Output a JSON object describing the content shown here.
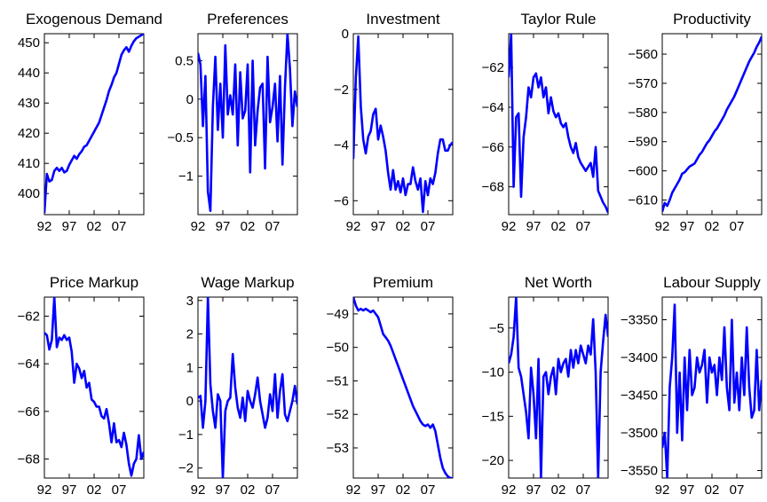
{
  "line_color": "#0000ff",
  "x_ticks": [
    "92",
    "97",
    "02",
    "07"
  ],
  "chart_data": [
    {
      "type": "line",
      "title": "Exogenous Demand",
      "xlim": [
        1992,
        2012
      ],
      "ylim": [
        393,
        453
      ],
      "yticks": [
        {
          "v": 400,
          "label": "400"
        },
        {
          "v": 410,
          "label": "410"
        },
        {
          "v": 420,
          "label": "420"
        },
        {
          "v": 430,
          "label": "430"
        },
        {
          "v": 440,
          "label": "440"
        },
        {
          "v": 450,
          "label": "450"
        }
      ],
      "x": [
        1992,
        1992.5,
        1993,
        1993.5,
        1994,
        1994.5,
        1995,
        1995.5,
        1996,
        1996.5,
        1997,
        1997.5,
        1998,
        1998.5,
        1999,
        1999.5,
        2000,
        2000.5,
        2001,
        2001.5,
        2002,
        2002.5,
        2003,
        2003.5,
        2004,
        2004.5,
        2005,
        2005.5,
        2006,
        2006.5,
        2007,
        2007.5,
        2008,
        2008.5,
        2009,
        2009.5,
        2010,
        2010.5,
        2011,
        2011.5,
        2012
      ],
      "values": [
        393.5,
        406.5,
        404,
        404.5,
        407.5,
        408.5,
        407.5,
        408.5,
        407,
        407.5,
        409.5,
        411,
        412.5,
        411.5,
        413,
        414,
        415.5,
        416,
        417.5,
        419,
        420.5,
        422,
        423.5,
        426,
        428.5,
        431,
        434,
        436,
        438.5,
        440,
        443,
        446,
        447.5,
        448.5,
        447,
        449,
        450.5,
        451.5,
        452,
        452.5,
        453
      ]
    },
    {
      "type": "line",
      "title": "Preferences",
      "xlim": [
        1992,
        2012
      ],
      "ylim": [
        -1.5,
        0.85
      ],
      "yticks": [
        {
          "v": -1,
          "label": "−1"
        },
        {
          "v": -0.5,
          "label": "−0.5"
        },
        {
          "v": 0,
          "label": "0"
        },
        {
          "v": 0.5,
          "label": "0.5"
        }
      ],
      "x": [
        1992,
        1992.5,
        1993,
        1993.5,
        1994,
        1994.5,
        1995,
        1995.5,
        1996,
        1996.5,
        1997,
        1997.5,
        1998,
        1998.5,
        1999,
        1999.5,
        2000,
        2000.5,
        2001,
        2001.5,
        2002,
        2002.5,
        2003,
        2003.5,
        2004,
        2004.5,
        2005,
        2005.5,
        2006,
        2006.5,
        2007,
        2007.5,
        2008,
        2008.5,
        2009,
        2009.5,
        2010,
        2010.5,
        2011,
        2011.5,
        2012
      ],
      "values": [
        0.6,
        0.45,
        -0.35,
        0.3,
        -1.2,
        -1.45,
        -0.1,
        0.55,
        -0.4,
        0.2,
        -0.5,
        0.7,
        -0.2,
        0.05,
        -0.2,
        0.45,
        -0.6,
        0.35,
        -0.25,
        -0.15,
        0.45,
        -0.95,
        0.5,
        -0.6,
        -0.15,
        0.15,
        0.2,
        -0.9,
        0.55,
        -0.3,
        -0.1,
        0.2,
        -0.55,
        0.3,
        -0.85,
        0.15,
        0.85,
        0.4,
        -0.35,
        0.1,
        -0.1
      ]
    },
    {
      "type": "line",
      "title": "Investment",
      "xlim": [
        1992,
        2012
      ],
      "ylim": [
        -6.5,
        0
      ],
      "yticks": [
        {
          "v": -6,
          "label": "−6"
        },
        {
          "v": -4,
          "label": "−4"
        },
        {
          "v": -2,
          "label": "−2"
        },
        {
          "v": 0,
          "label": "0"
        }
      ],
      "x": [
        1992,
        1992.5,
        1993,
        1993.5,
        1994,
        1994.5,
        1995,
        1995.5,
        1996,
        1996.5,
        1997,
        1997.5,
        1998,
        1998.5,
        1999,
        1999.5,
        2000,
        2000.5,
        2001,
        2001.5,
        2002,
        2002.5,
        2003,
        2003.5,
        2004,
        2004.5,
        2005,
        2005.5,
        2006,
        2006.5,
        2007,
        2007.5,
        2008,
        2008.5,
        2009,
        2009.5,
        2010,
        2010.5,
        2011,
        2011.5,
        2012
      ],
      "values": [
        -4.5,
        -1.6,
        -0.1,
        -2.6,
        -3.8,
        -4.3,
        -3.7,
        -3.5,
        -2.9,
        -2.7,
        -3.8,
        -3.3,
        -3.7,
        -4.2,
        -5.0,
        -5.6,
        -4.9,
        -5.6,
        -5.3,
        -5.7,
        -5.2,
        -5.8,
        -5.4,
        -5.4,
        -4.8,
        -5.3,
        -5.6,
        -5.2,
        -6.4,
        -5.3,
        -5.8,
        -5.2,
        -5.4,
        -5.0,
        -4.3,
        -3.8,
        -3.8,
        -4.2,
        -4.2,
        -4.0,
        -3.9
      ]
    },
    {
      "type": "line",
      "title": "Taylor Rule",
      "xlim": [
        1992,
        2012
      ],
      "ylim": [
        -69.4,
        -60.3
      ],
      "yticks": [
        {
          "v": -68,
          "label": "−68"
        },
        {
          "v": -66,
          "label": "−66"
        },
        {
          "v": -64,
          "label": "−64"
        },
        {
          "v": -62,
          "label": "−62"
        }
      ],
      "x": [
        1992,
        1992.5,
        1993,
        1993.5,
        1994,
        1994.5,
        1995,
        1995.5,
        1996,
        1996.5,
        1997,
        1997.5,
        1998,
        1998.5,
        1999,
        1999.5,
        2000,
        2000.5,
        2001,
        2001.5,
        2002,
        2002.5,
        2003,
        2003.5,
        2004,
        2004.5,
        2005,
        2005.5,
        2006,
        2006.5,
        2007,
        2007.5,
        2008,
        2008.5,
        2009,
        2009.5,
        2010,
        2010.5,
        2011,
        2011.5,
        2012
      ],
      "values": [
        -62.5,
        -60.3,
        -68.0,
        -64.5,
        -64.3,
        -68.5,
        -65.5,
        -64.5,
        -63.0,
        -63.5,
        -62.5,
        -62.3,
        -63.0,
        -62.5,
        -63.5,
        -63.0,
        -64.3,
        -63.5,
        -64.2,
        -64.5,
        -64.3,
        -64.8,
        -65.0,
        -64.8,
        -65.5,
        -66.0,
        -66.3,
        -65.8,
        -66.5,
        -66.8,
        -67.0,
        -67.2,
        -67.0,
        -66.8,
        -67.5,
        -66.0,
        -68.2,
        -68.5,
        -68.8,
        -69.0,
        -69.3
      ]
    },
    {
      "type": "line",
      "title": "Productivity",
      "xlim": [
        1992,
        2012
      ],
      "ylim": [
        -615,
        -553
      ],
      "yticks": [
        {
          "v": -610,
          "label": "−610"
        },
        {
          "v": -600,
          "label": "−600"
        },
        {
          "v": -590,
          "label": "−590"
        },
        {
          "v": -580,
          "label": "−580"
        },
        {
          "v": -570,
          "label": "−570"
        },
        {
          "v": -560,
          "label": "−560"
        }
      ],
      "x": [
        1992,
        1992.5,
        1993,
        1993.5,
        1994,
        1994.5,
        1995,
        1995.5,
        1996,
        1996.5,
        1997,
        1997.5,
        1998,
        1998.5,
        1999,
        1999.5,
        2000,
        2000.5,
        2001,
        2001.5,
        2002,
        2002.5,
        2003,
        2003.5,
        2004,
        2004.5,
        2005,
        2005.5,
        2006,
        2006.5,
        2007,
        2007.5,
        2008,
        2008.5,
        2009,
        2009.5,
        2010,
        2010.5,
        2011,
        2011.5,
        2012
      ],
      "values": [
        -614,
        -611,
        -612,
        -610,
        -607.5,
        -606,
        -604.5,
        -603,
        -601,
        -600.5,
        -599.5,
        -598.5,
        -598,
        -597.5,
        -596,
        -594.5,
        -593.5,
        -592,
        -590.5,
        -589.5,
        -588,
        -586.5,
        -585.5,
        -584,
        -582.5,
        -581,
        -579,
        -577.5,
        -576,
        -574.5,
        -572.5,
        -570.5,
        -568.5,
        -566.5,
        -564.5,
        -562.5,
        -561,
        -559.5,
        -557.5,
        -556,
        -554
      ]
    },
    {
      "type": "line",
      "title": "Price Markup",
      "xlim": [
        1992,
        2012
      ],
      "ylim": [
        -68.8,
        -61.2
      ],
      "yticks": [
        {
          "v": -68,
          "label": "−68"
        },
        {
          "v": -66,
          "label": "−66"
        },
        {
          "v": -64,
          "label": "−64"
        },
        {
          "v": -62,
          "label": "−62"
        }
      ],
      "x": [
        1992,
        1992.5,
        1993,
        1993.5,
        1994,
        1994.5,
        1995,
        1995.5,
        1996,
        1996.5,
        1997,
        1997.5,
        1998,
        1998.5,
        1999,
        1999.5,
        2000,
        2000.5,
        2001,
        2001.5,
        2002,
        2002.5,
        2003,
        2003.5,
        2004,
        2004.5,
        2005,
        2005.5,
        2006,
        2006.5,
        2007,
        2007.5,
        2008,
        2008.5,
        2009,
        2009.5,
        2010,
        2010.5,
        2011,
        2011.5,
        2012
      ],
      "values": [
        -62.7,
        -62.8,
        -63.4,
        -63.0,
        -61.2,
        -63.3,
        -62.9,
        -63.0,
        -62.8,
        -63.0,
        -62.9,
        -63.5,
        -64.8,
        -64.0,
        -64.2,
        -64.6,
        -64.3,
        -65.0,
        -64.8,
        -65.5,
        -65.6,
        -65.8,
        -65.8,
        -66.2,
        -66.3,
        -65.9,
        -66.5,
        -67.3,
        -66.5,
        -67.3,
        -67.2,
        -67.5,
        -66.9,
        -67.4,
        -68.2,
        -68.7,
        -68.2,
        -68.0,
        -67.0,
        -68.0,
        -67.7
      ]
    },
    {
      "type": "line",
      "title": "Wage Markup",
      "xlim": [
        1992,
        2012
      ],
      "ylim": [
        -2.3,
        3.1
      ],
      "yticks": [
        {
          "v": -2,
          "label": "−2"
        },
        {
          "v": -1,
          "label": "−1"
        },
        {
          "v": 0,
          "label": "0"
        },
        {
          "v": 1,
          "label": "1"
        },
        {
          "v": 2,
          "label": "2"
        },
        {
          "v": 3,
          "label": "3"
        }
      ],
      "x": [
        1992,
        1992.5,
        1993,
        1993.5,
        1994,
        1994.5,
        1995,
        1995.5,
        1996,
        1996.5,
        1997,
        1997.5,
        1998,
        1998.5,
        1999,
        1999.5,
        2000,
        2000.5,
        2001,
        2001.5,
        2002,
        2002.5,
        2003,
        2003.5,
        2004,
        2004.5,
        2005,
        2005.5,
        2006,
        2006.5,
        2007,
        2007.5,
        2008,
        2008.5,
        2009,
        2009.5,
        2010,
        2010.5,
        2011,
        2011.5,
        2012
      ],
      "values": [
        0.1,
        0.15,
        -0.8,
        0.0,
        3.1,
        0.5,
        -0.3,
        -0.8,
        0.2,
        0.0,
        -2.3,
        -0.3,
        0.0,
        0.1,
        1.4,
        0.4,
        -0.2,
        -0.5,
        0.1,
        -0.6,
        0.3,
        0.0,
        -0.2,
        0.2,
        0.7,
        0.0,
        -0.4,
        -0.8,
        -0.5,
        0.2,
        -0.3,
        0.8,
        -0.5,
        0.3,
        0.8,
        -0.4,
        -0.6,
        -0.3,
        0.0,
        0.45,
        -0.1
      ]
    },
    {
      "type": "line",
      "title": "Premium",
      "xlim": [
        1992,
        2012
      ],
      "ylim": [
        -53.9,
        -48.5
      ],
      "yticks": [
        {
          "v": -53,
          "label": "−53"
        },
        {
          "v": -52,
          "label": "−52"
        },
        {
          "v": -51,
          "label": "−51"
        },
        {
          "v": -50,
          "label": "−50"
        },
        {
          "v": -49,
          "label": "−49"
        }
      ],
      "x": [
        1992,
        1992.5,
        1993,
        1993.5,
        1994,
        1994.5,
        1995,
        1995.5,
        1996,
        1996.5,
        1997,
        1997.5,
        1998,
        1998.5,
        1999,
        1999.5,
        2000,
        2000.5,
        2001,
        2001.5,
        2002,
        2002.5,
        2003,
        2003.5,
        2004,
        2004.5,
        2005,
        2005.5,
        2006,
        2006.5,
        2007,
        2007.5,
        2008,
        2008.5,
        2009,
        2009.5,
        2010,
        2010.5,
        2011,
        2011.5,
        2012
      ],
      "values": [
        -48.5,
        -48.75,
        -48.9,
        -48.85,
        -48.9,
        -48.85,
        -48.9,
        -48.95,
        -48.9,
        -49.0,
        -49.1,
        -49.35,
        -49.6,
        -49.7,
        -49.8,
        -49.95,
        -50.15,
        -50.35,
        -50.55,
        -50.75,
        -50.95,
        -51.15,
        -51.35,
        -51.55,
        -51.75,
        -51.9,
        -52.05,
        -52.2,
        -52.3,
        -52.35,
        -52.3,
        -52.4,
        -52.3,
        -52.5,
        -52.9,
        -53.3,
        -53.6,
        -53.75,
        -53.85,
        -53.9,
        -53.9
      ]
    },
    {
      "type": "line",
      "title": "Net Worth",
      "xlim": [
        1992,
        2012
      ],
      "ylim": [
        -22,
        -1.5
      ],
      "yticks": [
        {
          "v": -20,
          "label": "−20"
        },
        {
          "v": -15,
          "label": "−15"
        },
        {
          "v": -10,
          "label": "−10"
        },
        {
          "v": -5,
          "label": "−5"
        }
      ],
      "x": [
        1992,
        1992.5,
        1993,
        1993.5,
        1994,
        1994.5,
        1995,
        1995.5,
        1996,
        1996.5,
        1997,
        1997.5,
        1998,
        1998.5,
        1999,
        1999.5,
        2000,
        2000.5,
        2001,
        2001.5,
        2002,
        2002.5,
        2003,
        2003.5,
        2004,
        2004.5,
        2005,
        2005.5,
        2006,
        2006.5,
        2007,
        2007.5,
        2008,
        2008.5,
        2009,
        2009.5,
        2010,
        2010.5,
        2011,
        2011.5,
        2012
      ],
      "values": [
        -9,
        -8,
        -6,
        -1.5,
        -9.5,
        -10.5,
        -12.5,
        -14.5,
        -17.5,
        -9.5,
        -12.5,
        -17.5,
        -8.5,
        -22,
        -10.5,
        -10,
        -12.5,
        -10.5,
        -9.5,
        -12.5,
        -8.5,
        -10,
        -9,
        -8.5,
        -10.5,
        -7.5,
        -9.5,
        -7.5,
        -9,
        -7,
        -8,
        -9,
        -7,
        -8,
        -4,
        -10,
        -22,
        -10,
        -6.5,
        -3.5,
        -6
      ]
    },
    {
      "type": "line",
      "title": "Labour Supply",
      "xlim": [
        1992,
        2012
      ],
      "ylim": [
        -3560,
        -3320
      ],
      "yticks": [
        {
          "v": -3550,
          "label": "−3550"
        },
        {
          "v": -3500,
          "label": "−3500"
        },
        {
          "v": -3450,
          "label": "−3450"
        },
        {
          "v": -3400,
          "label": "−3400"
        },
        {
          "v": -3350,
          "label": "−3350"
        }
      ],
      "x": [
        1992,
        1992.5,
        1993,
        1993.5,
        1994,
        1994.5,
        1995,
        1995.5,
        1996,
        1996.5,
        1997,
        1997.5,
        1998,
        1998.5,
        1999,
        1999.5,
        2000,
        2000.5,
        2001,
        2001.5,
        2002,
        2002.5,
        2003,
        2003.5,
        2004,
        2004.5,
        2005,
        2005.5,
        2006,
        2006.5,
        2007,
        2007.5,
        2008,
        2008.5,
        2009,
        2009.5,
        2010,
        2010.5,
        2011,
        2011.5,
        2012
      ],
      "values": [
        -3520,
        -3500,
        -3560,
        -3440,
        -3400,
        -3330,
        -3500,
        -3420,
        -3510,
        -3400,
        -3470,
        -3390,
        -3450,
        -3440,
        -3400,
        -3420,
        -3410,
        -3390,
        -3460,
        -3400,
        -3420,
        -3410,
        -3450,
        -3400,
        -3430,
        -3360,
        -3440,
        -3470,
        -3350,
        -3460,
        -3420,
        -3470,
        -3400,
        -3450,
        -3360,
        -3440,
        -3480,
        -3470,
        -3390,
        -3470,
        -3430
      ]
    }
  ]
}
